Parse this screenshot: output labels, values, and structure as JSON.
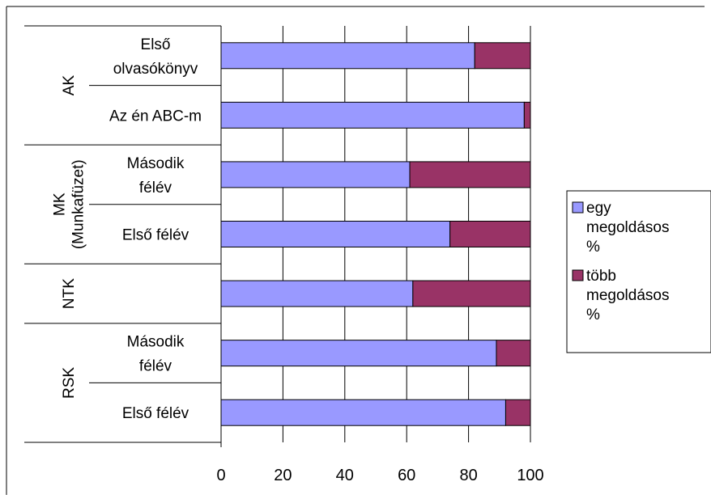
{
  "chart_data": {
    "type": "bar",
    "orientation": "horizontal",
    "stacked": true,
    "groups": [
      {
        "label": "AK",
        "categories": [
          "Első olvasókönyv",
          "Az én ABC-m"
        ]
      },
      {
        "label": "MK (Munkafüzet)",
        "categories": [
          "Második félév",
          "Első félév"
        ]
      },
      {
        "label": "NTK",
        "categories": [
          ""
        ]
      },
      {
        "label": "RSK",
        "categories": [
          "Második félév",
          "Első félév"
        ]
      }
    ],
    "series": [
      {
        "name": "egy megoldásos %",
        "color": "#9999ff",
        "values": [
          82,
          98,
          61,
          74,
          62,
          89,
          92
        ]
      },
      {
        "name": "több megoldásos %",
        "color": "#993366",
        "values": [
          18,
          2,
          39,
          26,
          38,
          11,
          8
        ]
      }
    ],
    "xlim": [
      0,
      100
    ],
    "xticks": [
      0,
      20,
      40,
      60,
      80,
      100
    ],
    "grid": true,
    "legend_position": "right"
  }
}
